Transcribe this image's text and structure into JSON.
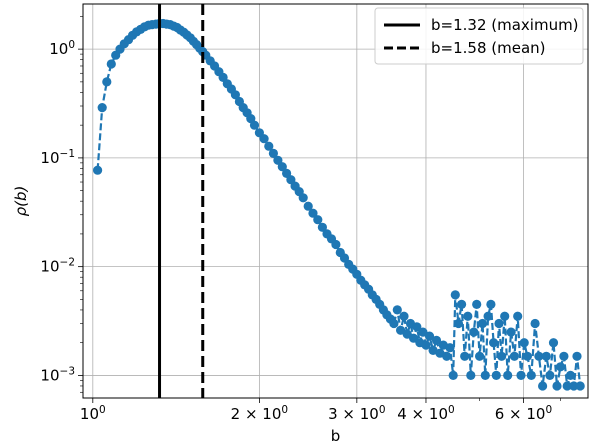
{
  "chart_data": {
    "type": "line",
    "xlabel": "b",
    "ylabel": "ρ(b)",
    "xscale": "log",
    "yscale": "log",
    "xlim": [
      0.96,
      7.85
    ],
    "ylim": [
      0.00062,
      2.6
    ],
    "grid": true,
    "legend_position": "top-right",
    "x_ticks": [
      {
        "value": 1,
        "base": "10",
        "exp": "0"
      },
      {
        "value": 2,
        "base": "2 × 10",
        "exp": "0"
      },
      {
        "value": 3,
        "base": "3 × 10",
        "exp": "0"
      },
      {
        "value": 4,
        "base": "4 × 10",
        "exp": "0"
      },
      {
        "value": 6,
        "base": "6 × 10",
        "exp": "0"
      }
    ],
    "y_ticks": [
      {
        "value": 0.001,
        "base": "10",
        "exp": "−3"
      },
      {
        "value": 0.01,
        "base": "10",
        "exp": "−2"
      },
      {
        "value": 0.1,
        "base": "10",
        "exp": "−1"
      },
      {
        "value": 1,
        "base": "10",
        "exp": "0"
      }
    ],
    "vlines": [
      {
        "x": 1.32,
        "style": "solid",
        "label": "b=1.32 (maximum)",
        "color": "#000000"
      },
      {
        "x": 1.58,
        "style": "dashed",
        "label": "b=1.58 (mean)",
        "color": "#000000"
      }
    ],
    "series": [
      {
        "color": "#1f77b4",
        "line_style": "dashed",
        "marker": "circle",
        "x": [
          1.02,
          1.04,
          1.06,
          1.08,
          1.1,
          1.12,
          1.14,
          1.16,
          1.18,
          1.2,
          1.22,
          1.24,
          1.26,
          1.28,
          1.3,
          1.32,
          1.34,
          1.36,
          1.38,
          1.4,
          1.42,
          1.44,
          1.46,
          1.48,
          1.5,
          1.52,
          1.54,
          1.56,
          1.58,
          1.6,
          1.63,
          1.66,
          1.69,
          1.72,
          1.75,
          1.78,
          1.81,
          1.84,
          1.87,
          1.9,
          1.93,
          1.96,
          2.0,
          2.04,
          2.08,
          2.12,
          2.16,
          2.2,
          2.24,
          2.28,
          2.32,
          2.36,
          2.4,
          2.45,
          2.5,
          2.55,
          2.6,
          2.65,
          2.7,
          2.75,
          2.8,
          2.85,
          2.9,
          2.95,
          3.0,
          3.05,
          3.1,
          3.15,
          3.2,
          3.25,
          3.3,
          3.35,
          3.4,
          3.45,
          3.5,
          3.55,
          3.6,
          3.65,
          3.7,
          3.75,
          3.8,
          3.85,
          3.9,
          3.95,
          4.0,
          4.06,
          4.12,
          4.18,
          4.24,
          4.3,
          4.36,
          4.42,
          4.48,
          4.52,
          4.58,
          4.64,
          4.7,
          4.76,
          4.82,
          4.88,
          4.94,
          5.0,
          5.06,
          5.12,
          5.18,
          5.24,
          5.3,
          5.36,
          5.42,
          5.48,
          5.55,
          5.62,
          5.7,
          5.78,
          5.86,
          5.94,
          6.02,
          6.1,
          6.2,
          6.3,
          6.4,
          6.5,
          6.6,
          6.7,
          6.8,
          6.9,
          7.0,
          7.1,
          7.2,
          7.3,
          7.4,
          7.5,
          7.6
        ],
        "y": [
          0.077,
          0.29,
          0.5,
          0.73,
          0.88,
          1.0,
          1.12,
          1.22,
          1.34,
          1.44,
          1.52,
          1.6,
          1.66,
          1.68,
          1.7,
          1.72,
          1.72,
          1.7,
          1.68,
          1.63,
          1.58,
          1.5,
          1.43,
          1.35,
          1.27,
          1.18,
          1.1,
          1.02,
          0.95,
          0.88,
          0.78,
          0.7,
          0.62,
          0.55,
          0.48,
          0.43,
          0.38,
          0.33,
          0.29,
          0.26,
          0.23,
          0.2,
          0.17,
          0.15,
          0.128,
          0.11,
          0.095,
          0.083,
          0.072,
          0.063,
          0.055,
          0.049,
          0.043,
          0.036,
          0.031,
          0.027,
          0.023,
          0.02,
          0.018,
          0.016,
          0.0135,
          0.012,
          0.0105,
          0.0095,
          0.0085,
          0.0075,
          0.0068,
          0.0062,
          0.0055,
          0.005,
          0.0045,
          0.004,
          0.0036,
          0.0033,
          0.003,
          0.004,
          0.0026,
          0.0035,
          0.0024,
          0.003,
          0.0022,
          0.0028,
          0.002,
          0.0025,
          0.0019,
          0.0023,
          0.0017,
          0.0021,
          0.0016,
          0.0019,
          0.0015,
          0.0018,
          0.001,
          0.0055,
          0.003,
          0.0045,
          0.0015,
          0.0035,
          0.001,
          0.0025,
          0.0045,
          0.0015,
          0.003,
          0.001,
          0.0035,
          0.0045,
          0.002,
          0.001,
          0.003,
          0.0015,
          0.0035,
          0.001,
          0.0025,
          0.0015,
          0.0035,
          0.001,
          0.002,
          0.0015,
          0.001,
          0.003,
          0.0015,
          0.0008,
          0.0015,
          0.001,
          0.002,
          0.0008,
          0.0012,
          0.0015,
          0.0008,
          0.001,
          0.0008,
          0.0015,
          0.0008
        ]
      }
    ]
  }
}
